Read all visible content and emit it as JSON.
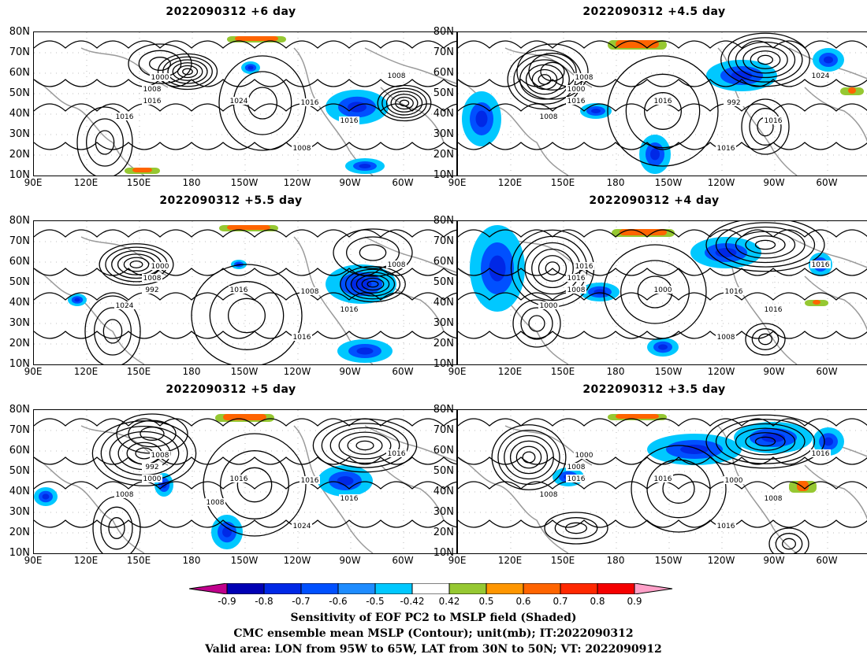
{
  "panels": [
    {
      "title": "2022090312  +6  day",
      "contour_labels": [
        "1000",
        "1008",
        "1016",
        "1024",
        "1016",
        "1016",
        "1008",
        "1008",
        "1016"
      ]
    },
    {
      "title": "2022090312  +4.5  day",
      "contour_labels": [
        "1008",
        "1000",
        "1016",
        "1016",
        "992",
        "1008",
        "1016",
        "1024",
        "1016"
      ]
    },
    {
      "title": "2022090312  +5.5  day",
      "contour_labels": [
        "1000",
        "1008",
        "992",
        "1016",
        "1008",
        "1024",
        "1016",
        "1008",
        "1016"
      ]
    },
    {
      "title": "2022090312  +4  day",
      "contour_labels": [
        "1016",
        "1016",
        "1008",
        "1000",
        "1016",
        "1000",
        "1008",
        "1016",
        "1016"
      ]
    },
    {
      "title": "2022090312  +5  day",
      "contour_labels": [
        "1008",
        "992",
        "1000",
        "1016",
        "1016",
        "1008",
        "1024",
        "1016",
        "1016",
        "1008"
      ]
    },
    {
      "title": "2022090312  +3.5  day",
      "contour_labels": [
        "1000",
        "1008",
        "1016",
        "1016",
        "1000",
        "1008",
        "1016",
        "1016",
        "1008"
      ]
    }
  ],
  "lat_ticks": [
    "80N",
    "70N",
    "60N",
    "50N",
    "40N",
    "30N",
    "20N",
    "10N"
  ],
  "lon_ticks": [
    "90E",
    "120E",
    "150E",
    "180",
    "150W",
    "120W",
    "90W",
    "60W"
  ],
  "colorbar": {
    "ticks": [
      "-0.9",
      "-0.8",
      "-0.7",
      "-0.6",
      "-0.5",
      "-0.42",
      "0.42",
      "0.5",
      "0.6",
      "0.7",
      "0.8",
      "0.9"
    ],
    "colors": [
      "#c0008c",
      "#0000b4",
      "#0028e6",
      "#0050ff",
      "#1e8cff",
      "#00c8ff",
      "#ffffff",
      "#96c832",
      "#ff9600",
      "#ff6400",
      "#ff2800",
      "#f50000",
      "#ffa0c8"
    ]
  },
  "caption": {
    "line1": "Sensitivity of EOF PC2 to MSLP field (Shaded)",
    "line2": "CMC ensemble mean MSLP (Contour); unit(mb); IT:2022090312",
    "line3": "Valid area: LON from 95W to 65W, LAT from 30N to 50N; VT: 2022090912"
  }
}
